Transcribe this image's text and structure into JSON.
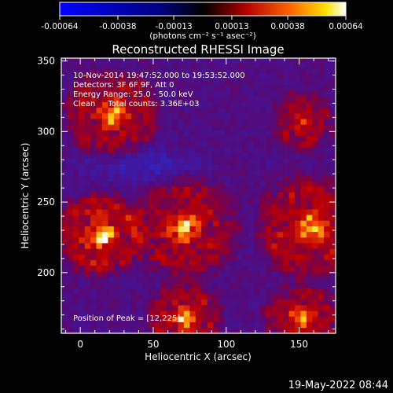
{
  "chart_data": {
    "type": "heatmap",
    "title": "Reconstructed RHESSI Image",
    "xlabel": "Heliocentric X (arcsec)",
    "ylabel": "Heliocentric Y (arcsec)",
    "xlim": [
      -13,
      175
    ],
    "ylim": [
      157,
      352
    ],
    "x_ticks": [
      0,
      50,
      100,
      150
    ],
    "y_ticks": [
      200,
      250,
      300,
      350
    ],
    "colorbar": {
      "range": [
        -0.00064,
        0.00064
      ],
      "tick_values": [
        -0.00064,
        -0.00038,
        -0.00013,
        0.00013,
        0.00038,
        0.00064
      ],
      "tick_labels": [
        "-0.00064",
        "-0.00038",
        "-0.00013",
        "0.00013",
        "0.00038",
        "0.00064"
      ],
      "unit_line": "(photons cm⁻² s⁻¹ asec⁻²)"
    },
    "annotations": [
      "10-Nov-2014 19:47:52.000 to 19:53:52.000",
      "Detectors: 3F 6F 9F, Att 0",
      "Energy Range: 25.0 - 50.0 keV",
      "Clean     Total counts: 3.36E+03"
    ],
    "peak_label": "Position of Peak = [12,225]",
    "peak": [
      12,
      225
    ],
    "grid_resolution_arcsec": 4,
    "bright_regions": [
      {
        "x": 20,
        "y": 310,
        "radius": 22,
        "level": 0.85
      },
      {
        "x": 150,
        "y": 305,
        "radius": 15,
        "level": 0.7
      },
      {
        "x": 12,
        "y": 225,
        "radius": 20,
        "level": 1.0
      },
      {
        "x": 70,
        "y": 230,
        "radius": 25,
        "level": 0.8
      },
      {
        "x": 155,
        "y": 230,
        "radius": 25,
        "level": 0.9
      },
      {
        "x": 70,
        "y": 165,
        "radius": 18,
        "level": 0.85
      },
      {
        "x": 150,
        "y": 165,
        "radius": 18,
        "level": 0.8
      }
    ],
    "grid": false
  },
  "footer": {
    "timestamp": "19-May-2022 08:44"
  }
}
